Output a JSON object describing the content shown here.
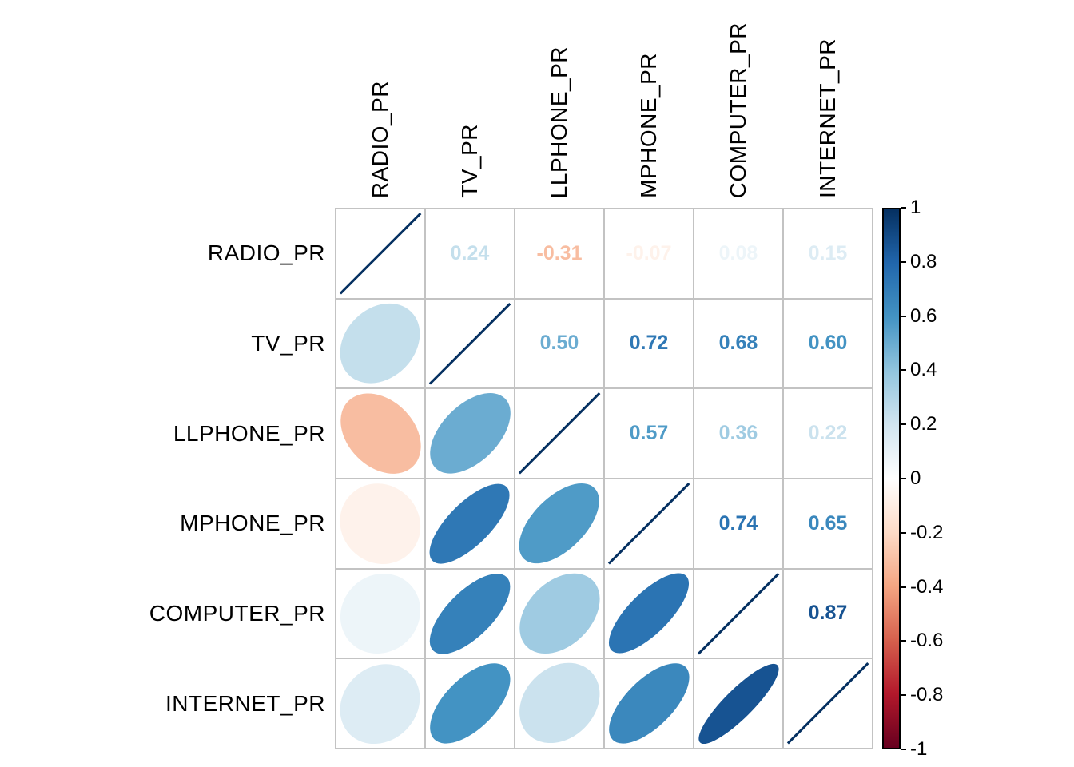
{
  "figure": {
    "background": "#ffffff",
    "grid_color": "#c3c3c3",
    "label_color": "#000000",
    "diagonal_line_color": "#053061"
  },
  "chart_data": {
    "type": "heatmap",
    "subtype": "correlation-matrix-mixed: lower triangle = ellipses, upper triangle = numbers, diagonal = unit line (r=1)",
    "variables": [
      "RADIO_PR",
      "TV_PR",
      "LLPHONE_PR",
      "MPHONE_PR",
      "COMPUTER_PR",
      "INTERNET_PR"
    ],
    "matrix": [
      [
        1.0,
        0.24,
        -0.31,
        -0.07,
        0.08,
        0.15
      ],
      [
        0.24,
        1.0,
        0.5,
        0.72,
        0.68,
        0.6
      ],
      [
        -0.31,
        0.5,
        1.0,
        0.57,
        0.36,
        0.22
      ],
      [
        -0.07,
        0.72,
        0.57,
        1.0,
        0.74,
        0.65
      ],
      [
        0.08,
        0.68,
        0.36,
        0.74,
        1.0,
        0.87
      ],
      [
        0.15,
        0.6,
        0.22,
        0.65,
        0.87,
        1.0
      ]
    ],
    "value_format": "2 decimals",
    "value_range": [
      -1,
      1
    ],
    "legend_position": "right",
    "grid": true,
    "colorbar": {
      "ticks": [
        "1",
        "0.8",
        "0.6",
        "0.4",
        "0.2",
        "0",
        "-0.2",
        "-0.4",
        "-0.6",
        "-0.8",
        "-1"
      ],
      "top_value": 1,
      "bottom_value": -1
    },
    "palette_anchors_low_to_high": [
      "#67001F",
      "#B2182B",
      "#D6604D",
      "#F4A582",
      "#FDDBC7",
      "#FFFFFF",
      "#D1E5F0",
      "#92C5DE",
      "#4393C3",
      "#2166AC",
      "#053061"
    ]
  }
}
